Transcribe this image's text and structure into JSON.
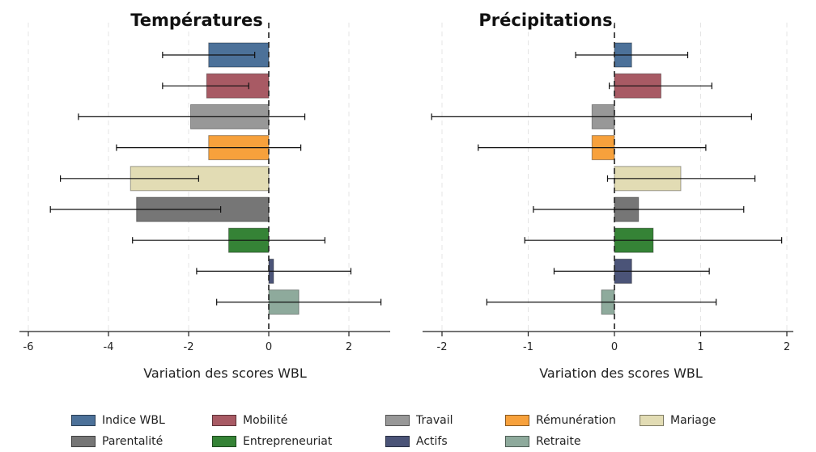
{
  "chart_data": [
    {
      "type": "bar",
      "orientation": "horizontal",
      "title": "Températures",
      "xlabel": "Variation des scores WBL",
      "xlim": [
        -6,
        3
      ],
      "xticks": [
        -6,
        -4,
        -2,
        0,
        2
      ],
      "xtick_labels": [
        "-6",
        "-4",
        "-2",
        "0",
        "2"
      ],
      "grid": "vertical dashed",
      "reference_line": 0,
      "categories": [
        "Indice WBL",
        "Mobilité",
        "Travail",
        "Rémunération",
        "Mariage",
        "Parentalité",
        "Entrepreneuriat",
        "Actifs",
        "Retraite"
      ],
      "values": [
        -1.5,
        -1.55,
        -1.95,
        -1.5,
        -3.45,
        -3.3,
        -1.0,
        0.12,
        0.75
      ],
      "ci_low": [
        -2.65,
        -2.65,
        -4.75,
        -3.8,
        -5.2,
        -5.45,
        -3.4,
        -1.8,
        -1.3
      ],
      "ci_high": [
        -0.35,
        -0.5,
        0.9,
        0.8,
        -1.75,
        -1.2,
        1.4,
        2.05,
        2.8
      ]
    },
    {
      "type": "bar",
      "orientation": "horizontal",
      "title": "Précipitations",
      "xlabel": "Variation des scores WBL",
      "xlim": [
        -2.1,
        2.1
      ],
      "xticks": [
        -2,
        -1,
        0,
        1,
        2
      ],
      "xtick_labels": [
        "-2",
        "-1",
        "0",
        "1",
        "2"
      ],
      "grid": "vertical dashed",
      "reference_line": 0,
      "categories": [
        "Indice WBL",
        "Mobilité",
        "Travail",
        "Rémunération",
        "Mariage",
        "Parentalité",
        "Entrepreneuriat",
        "Actifs",
        "Retraite"
      ],
      "values": [
        0.2,
        0.54,
        -0.26,
        -0.26,
        0.77,
        0.28,
        0.45,
        0.2,
        -0.15
      ],
      "ci_low": [
        -0.45,
        -0.06,
        -2.12,
        -1.58,
        -0.08,
        -0.94,
        -1.04,
        -0.7,
        -1.48
      ],
      "ci_high": [
        0.85,
        1.13,
        1.59,
        1.06,
        1.63,
        1.5,
        1.94,
        1.1,
        1.18
      ]
    }
  ],
  "legend": {
    "position": "bottom",
    "items": [
      {
        "label": "Indice WBL",
        "color": "#4c7199"
      },
      {
        "label": "Mobilité",
        "color": "#a85a64"
      },
      {
        "label": "Travail",
        "color": "#989898"
      },
      {
        "label": "Rémunération",
        "color": "#f7a13c"
      },
      {
        "label": "Mariage",
        "color": "#e2dcb4"
      },
      {
        "label": "Parentalité",
        "color": "#767676"
      },
      {
        "label": "Entrepreneuriat",
        "color": "#358336"
      },
      {
        "label": "Actifs",
        "color": "#4b5478"
      },
      {
        "label": "Retraite",
        "color": "#8eaa9c"
      }
    ]
  }
}
